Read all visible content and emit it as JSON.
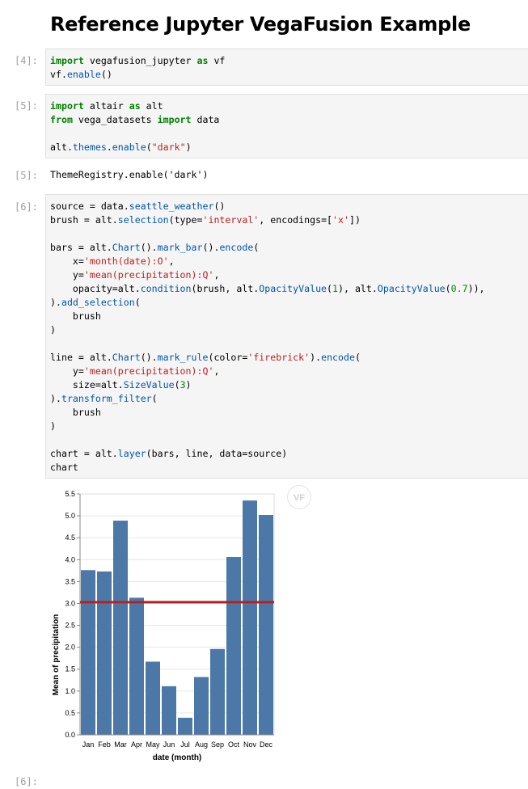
{
  "page_title": "Reference Jupyter VegaFusion Example",
  "cells": [
    {
      "prompt": "[4]:",
      "lines": [
        "import vegafusion_jupyter as vf",
        "vf.enable()"
      ]
    },
    {
      "prompt": "[5]:",
      "lines": [
        "import altair as alt",
        "from vega_datasets import data",
        "",
        "alt.themes.enable(\"dark\")"
      ]
    },
    {
      "prompt": "[5]:",
      "output": "ThemeRegistry.enable('dark')"
    },
    {
      "prompt": "[6]:",
      "lines": [
        "source = data.seattle_weather()",
        "brush = alt.selection(type='interval', encodings=['x'])",
        "",
        "bars = alt.Chart().mark_bar().encode(",
        "    x='month(date):O',",
        "    y='mean(precipitation):Q',",
        "    opacity=alt.condition(brush, alt.OpacityValue(1), alt.OpacityValue(0.7)),",
        ").add_selection(",
        "    brush",
        ")",
        "",
        "line = alt.Chart().mark_rule(color='firebrick').encode(",
        "    y='mean(precipitation):Q',",
        "    size=alt.SizeValue(3)",
        ").transform_filter(",
        "    brush",
        ")",
        "",
        "chart = alt.layer(bars, line, data=source)",
        "chart"
      ]
    },
    {
      "prompt": "[6]:"
    }
  ],
  "vf_badge": "VF",
  "chart_data": {
    "type": "bar",
    "categories": [
      "Jan",
      "Feb",
      "Mar",
      "Apr",
      "May",
      "Jun",
      "Jul",
      "Aug",
      "Sep",
      "Oct",
      "Nov",
      "Dec"
    ],
    "values": [
      3.76,
      3.73,
      4.89,
      3.13,
      1.67,
      1.11,
      0.39,
      1.32,
      1.96,
      4.06,
      5.35,
      5.02
    ],
    "rule_value": 3.03,
    "rule_color": "#b22222",
    "bar_color": "#4c78a8",
    "ylim": [
      0,
      5.5
    ],
    "yticks": [
      "0.0",
      "0.5",
      "1.0",
      "1.5",
      "2.0",
      "2.5",
      "3.0",
      "3.5",
      "4.0",
      "4.5",
      "5.0",
      "5.5"
    ],
    "xlabel": "date (month)",
    "ylabel": "Mean of precipitation",
    "grid": true
  }
}
